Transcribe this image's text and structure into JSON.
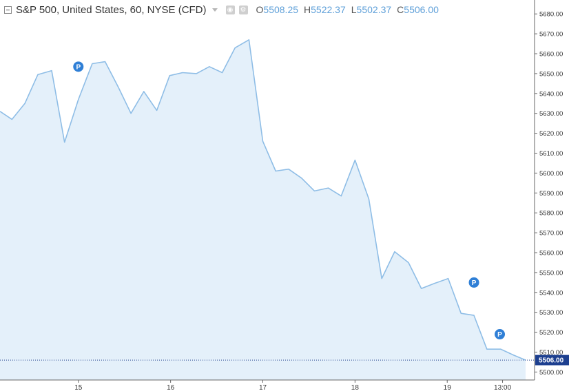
{
  "legend": {
    "title": "S&P 500, United States, 60, NYSE (CFD)",
    "ohlc": [
      {
        "key": "O",
        "value": "5508.25"
      },
      {
        "key": "H",
        "value": "5522.37"
      },
      {
        "key": "L",
        "value": "5502.37"
      },
      {
        "key": "C",
        "value": "5506.00"
      }
    ],
    "icons": [
      "caret-down-icon",
      "eye-icon",
      "settings-icon"
    ]
  },
  "colors": {
    "line": "#8ebde6",
    "area": "#e4f0fa",
    "price_line": "#1f3e8a",
    "price_label_bg": "#1d3f8f",
    "marker": "#2f7fd6",
    "axis": "#666666"
  },
  "chart_data": {
    "type": "area",
    "x_tick_labels": [
      "15",
      "16",
      "17",
      "18",
      "19",
      "13:00"
    ],
    "y_ticks": [
      5500,
      5510,
      5520,
      5530,
      5540,
      5550,
      5560,
      5570,
      5580,
      5590,
      5600,
      5610,
      5620,
      5630,
      5640,
      5650,
      5660,
      5670,
      5680
    ],
    "ylim": [
      5496,
      5687
    ],
    "xlim": [
      0,
      57
    ],
    "x_tick_positions": [
      8.5,
      18.5,
      28.5,
      38.5,
      48.5,
      54.5
    ],
    "series": [
      {
        "x": [
          0,
          1.3,
          2.7,
          4.1,
          5.6,
          7,
          8.5,
          10,
          11.4,
          12.8,
          14.2,
          15.6,
          17,
          18.4,
          19.8,
          21.3,
          22.7,
          24.1,
          25.5,
          27,
          28.5,
          29.9,
          31.3,
          32.7,
          34.1,
          35.6,
          37,
          38.5,
          40,
          41.4,
          42.8,
          44.3,
          45.7,
          47.1,
          48.6,
          50,
          51.4,
          52.8,
          54.3,
          55.7,
          57
        ],
        "y": [
          5631,
          5627,
          5635,
          5649.5,
          5651.5,
          5615.5,
          5637,
          5655,
          5656,
          5643.5,
          5630,
          5641,
          5631.5,
          5649,
          5650.5,
          5650,
          5653.5,
          5650.5,
          5663,
          5667,
          5616,
          5601,
          5602,
          5597.5,
          5591,
          5592.5,
          5588.5,
          5606.5,
          5587,
          5547,
          5560.5,
          5555,
          5542,
          5544.5,
          5547,
          5529.5,
          5528.5,
          5511.5,
          5511.5,
          5508.5,
          5506
        ]
      }
    ],
    "last_price_label": "5506.00",
    "last_price": 5506,
    "event_markers": [
      {
        "label": "P",
        "x": 8.5,
        "y": 5653.5
      },
      {
        "label": "P",
        "x": 51.4,
        "y": 5545
      },
      {
        "label": "P",
        "x": 54.2,
        "y": 5519
      }
    ]
  }
}
